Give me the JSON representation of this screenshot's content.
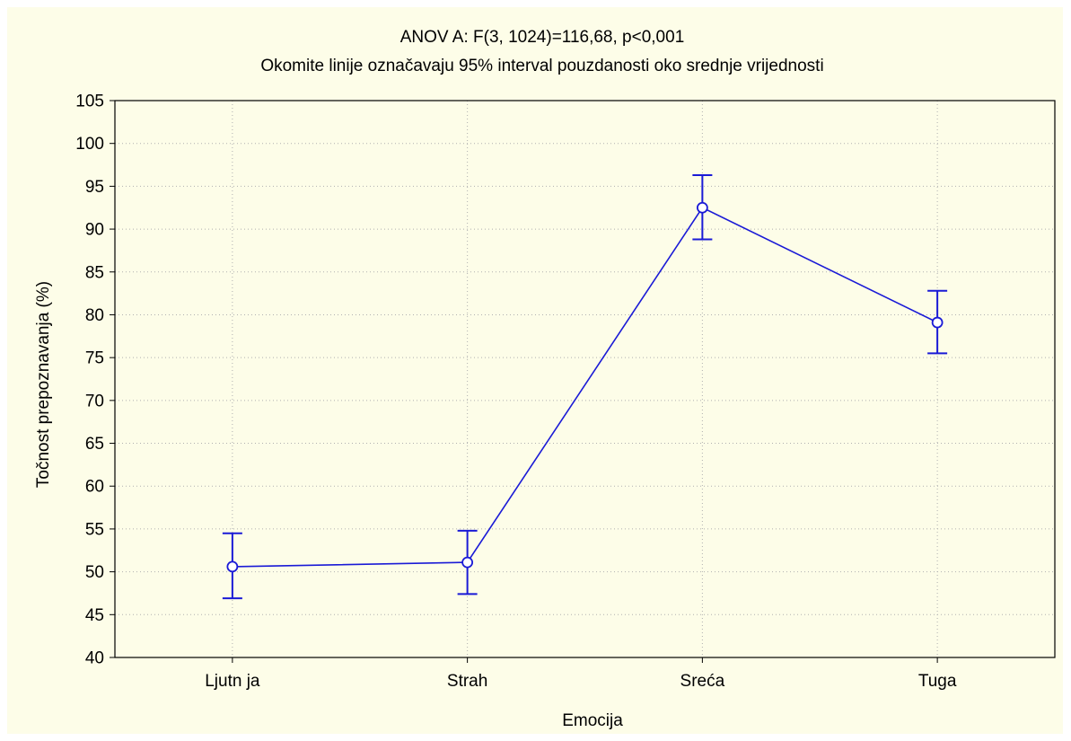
{
  "chart_data": {
    "type": "line",
    "title": "ANOV A: F(3, 1024)=116,68, p<0,001",
    "subtitle": "Okomite linije označavaju 95% interval pouzdanosti oko srednje vrijednosti",
    "xlabel": "Emocija",
    "ylabel": "Točnost prepoznavanja (%)",
    "categories": [
      "Ljutn ja",
      "Strah",
      "Sreća",
      "Tuga"
    ],
    "ylim": [
      40,
      105
    ],
    "yticks": [
      "40",
      "45",
      "50",
      "55",
      "60",
      "65",
      "70",
      "75",
      "80",
      "85",
      "90",
      "95",
      "100",
      "105"
    ],
    "series": [
      {
        "values": [
          50.6,
          51.1,
          92.5,
          79.1
        ],
        "ci_lower": [
          46.9,
          47.4,
          88.8,
          75.5
        ],
        "ci_upper": [
          54.5,
          54.8,
          96.3,
          82.8
        ]
      }
    ],
    "grid": true,
    "colors": {
      "series": "#1a1ad6",
      "background": "#fdfde8"
    }
  }
}
